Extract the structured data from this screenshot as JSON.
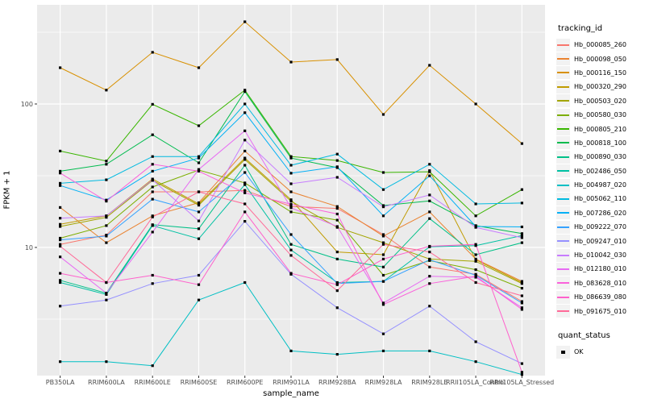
{
  "figure": {
    "xlabel": "sample_name",
    "ylabel": "FPKM + 1",
    "legend_title": "tracking_id",
    "quant_legend_title": "quant_status",
    "quant_legend_items": [
      "OK"
    ]
  },
  "chart_data": {
    "type": "line",
    "title": "",
    "xlabel": "sample_name",
    "ylabel": "FPKM + 1",
    "y_scale": "log10",
    "y_ticks": [
      10,
      100
    ],
    "y_tick_labels": [
      "10",
      "100"
    ],
    "y_minor_ticks": [
      3.162,
      31.62,
      316.2
    ],
    "ylim": [
      1.25,
      480
    ],
    "grid": true,
    "legend_position": "right",
    "panel_background": "#EBEBEB",
    "grid_color": "#FFFFFF",
    "point_marker": {
      "shape": "square",
      "color": "#000000",
      "meaning": "quant_status = OK"
    },
    "x_categories": [
      "PB350LA",
      "RRIM600LA",
      "RRIM600LE",
      "RRIM600SE",
      "RRIM600PE",
      "RRIM901LA",
      "RRIM928BA",
      "RRIM928LA",
      "RRIM928LE",
      "RRII105LA_Control",
      "RRII105LA_Stressed"
    ],
    "series": [
      {
        "name": "Hb_000085_260",
        "color": "#F8766D",
        "values": [
          10.5,
          12.2,
          24.4,
          24.4,
          25,
          19.3,
          18.7,
          12.3,
          7.3,
          6.5,
          4.2
        ]
      },
      {
        "name": "Hb_000098_050",
        "color": "#EA8331",
        "values": [
          19,
          10.8,
          16.6,
          20.5,
          47,
          24.4,
          19.3,
          12,
          17.7,
          8.3,
          5.8
        ]
      },
      {
        "name": "Hb_000116_150",
        "color": "#D89000",
        "values": [
          179,
          125,
          229,
          179,
          374,
          196,
          204,
          84.5,
          186,
          100,
          53
        ]
      },
      {
        "name": "Hb_000320_290",
        "color": "#C09B00",
        "values": [
          14.5,
          16.6,
          30,
          20.1,
          42,
          21.5,
          9.3,
          8.9,
          34.3,
          8.2,
          5.7
        ]
      },
      {
        "name": "Hb_000503_020",
        "color": "#A3A500",
        "values": [
          14,
          16.2,
          29.3,
          19.7,
          41,
          21,
          13.8,
          10.8,
          8.3,
          8,
          5.6
        ]
      },
      {
        "name": "Hb_000580_030",
        "color": "#7CAE00",
        "values": [
          11.6,
          14.2,
          26.4,
          34.6,
          28.2,
          17.7,
          15.5,
          6.4,
          8.1,
          7,
          5.2
        ]
      },
      {
        "name": "Hb_000805_210",
        "color": "#39B600",
        "values": [
          47,
          40,
          99.5,
          70.5,
          125,
          43,
          40.4,
          33.3,
          33.7,
          16.6,
          25.3
        ]
      },
      {
        "name": "Hb_000818_100",
        "color": "#00BB4E",
        "values": [
          34,
          38,
          61,
          38.9,
          122,
          42,
          36,
          19.6,
          21.1,
          14.2,
          12.5
        ]
      },
      {
        "name": "Hb_000890_030",
        "color": "#00C087",
        "values": [
          5.9,
          4.8,
          14.4,
          13.5,
          37.4,
          10.5,
          8.3,
          7.3,
          15.9,
          8.9,
          10.8
        ]
      },
      {
        "name": "Hb_002486_050",
        "color": "#00C1A3",
        "values": [
          5.7,
          4.7,
          14.2,
          11.5,
          27.4,
          9.6,
          5.7,
          5.8,
          10.1,
          10.3,
          12.1
        ]
      },
      {
        "name": "Hb_004987_020",
        "color": "#00BFC4",
        "values": [
          1.6,
          1.6,
          1.5,
          4.3,
          5.7,
          1.9,
          1.8,
          1.9,
          1.9,
          1.6,
          1.3
        ]
      },
      {
        "name": "Hb_005062_110",
        "color": "#00BAE0",
        "values": [
          28,
          29.6,
          43,
          43,
          100,
          37.4,
          44.7,
          25.3,
          38,
          20.1,
          20.4
        ]
      },
      {
        "name": "Hb_007286_020",
        "color": "#00B0F6",
        "values": [
          27,
          21.4,
          34,
          42,
          87,
          32.9,
          36.5,
          16.6,
          31.6,
          14,
          13.9
        ]
      },
      {
        "name": "Hb_009222_070",
        "color": "#35A2FF",
        "values": [
          11.3,
          12,
          21.7,
          17.7,
          33.3,
          12.3,
          5.6,
          5.8,
          8.2,
          6.4,
          4.1
        ]
      },
      {
        "name": "Hb_009247_010",
        "color": "#9590FF",
        "values": [
          3.9,
          4.3,
          5.6,
          6.4,
          15.2,
          6.5,
          3.8,
          2.5,
          3.9,
          2.2,
          1.55
        ]
      },
      {
        "name": "Hb_010042_030",
        "color": "#C77CFF",
        "values": [
          16,
          16.6,
          29.6,
          15.3,
          56,
          27.8,
          30.8,
          19.2,
          23.2,
          13.8,
          11.7
        ]
      },
      {
        "name": "Hb_012180_010",
        "color": "#E76BF3",
        "values": [
          8.6,
          4.8,
          12.8,
          35,
          65,
          18.9,
          14,
          4.1,
          6.3,
          6.2,
          3.8
        ]
      },
      {
        "name": "Hb_083628_010",
        "color": "#FA62DB",
        "values": [
          33,
          21,
          38,
          34,
          24,
          20,
          17.1,
          4,
          5.6,
          6.3,
          3.7
        ]
      },
      {
        "name": "Hb_086639_080",
        "color": "#FF61CC",
        "values": [
          6.6,
          5.7,
          6.4,
          5.5,
          17.7,
          6.6,
          5.5,
          8.3,
          10.2,
          10.5,
          1.35
        ]
      },
      {
        "name": "Hb_091675_010",
        "color": "#FF6A98",
        "values": [
          10.2,
          5.7,
          16.3,
          24.4,
          20.1,
          8.8,
          5,
          10.5,
          9.3,
          5.7,
          4.6
        ]
      }
    ]
  }
}
